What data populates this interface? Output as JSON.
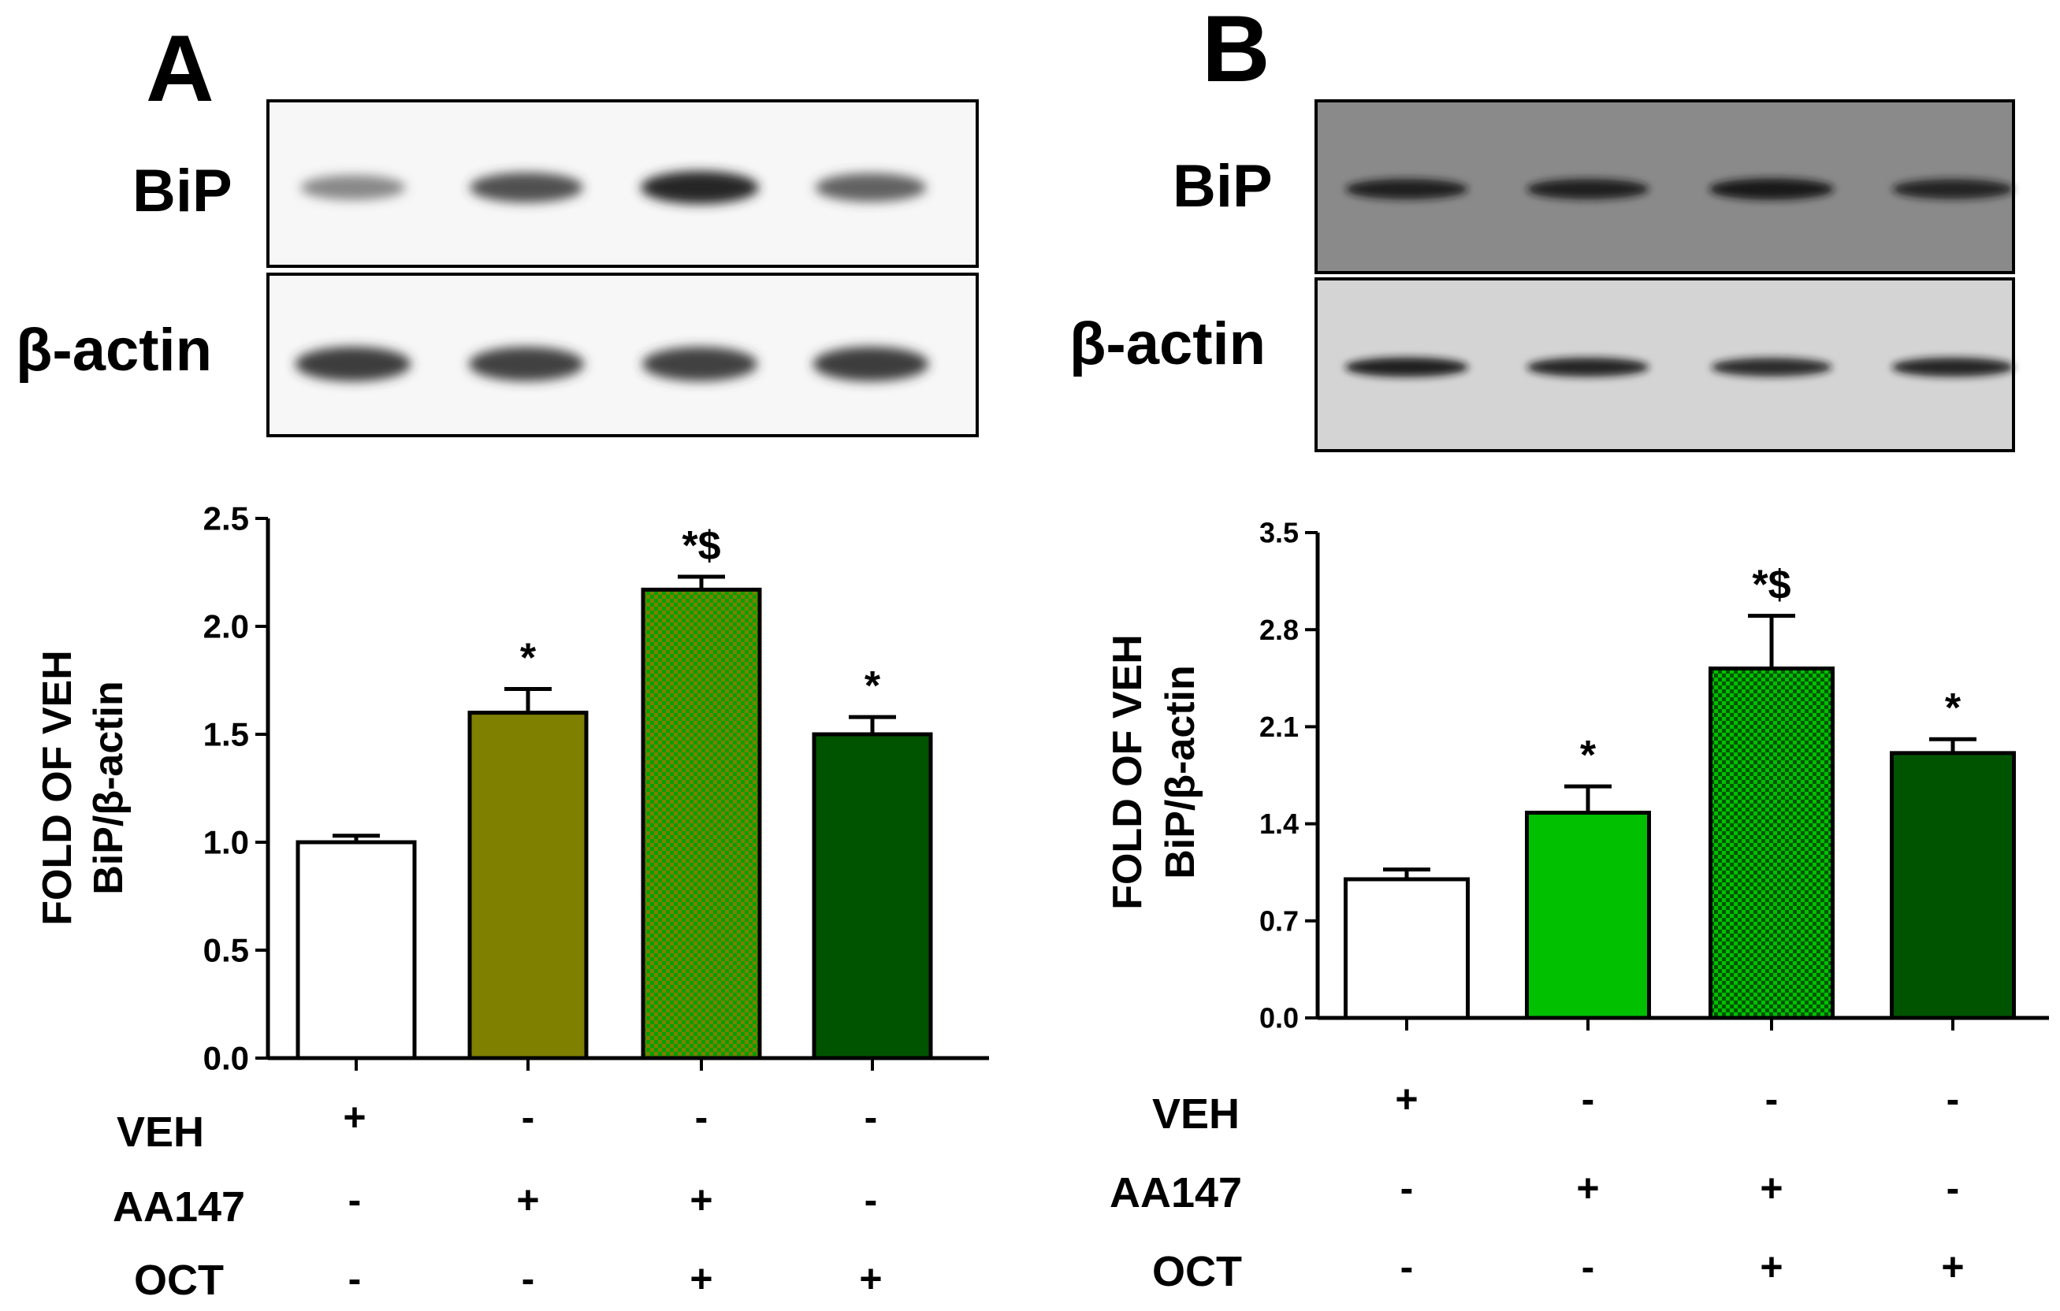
{
  "panels": [
    {
      "letter": "A",
      "blot_labels": [
        "BiP",
        "β-actin"
      ],
      "blot_style": "white-background",
      "bip_band_intensity": [
        0.45,
        0.8,
        1.0,
        0.7
      ],
      "actin_band_intensity": [
        0.9,
        0.88,
        0.88,
        0.9
      ],
      "colors": [
        "#ffffff",
        "#7f7f00",
        "#7f7f00",
        "#005400"
      ],
      "patterns": [
        "solid",
        "solid",
        "checker",
        "solid"
      ],
      "treatments": [
        {
          "label": "VEH",
          "marks": [
            "+",
            "-",
            "-",
            "-"
          ]
        },
        {
          "label": "AA147",
          "marks": [
            "-",
            "+",
            "+",
            "-"
          ]
        },
        {
          "label": "OCT",
          "marks": [
            "-",
            "-",
            "+",
            "+"
          ]
        }
      ]
    },
    {
      "letter": "B",
      "blot_labels": [
        "BiP",
        "β-actin"
      ],
      "blot_style": "grey-background",
      "bip_band_intensity": [
        0.85,
        0.85,
        0.95,
        0.8
      ],
      "actin_band_intensity": [
        0.9,
        0.85,
        0.8,
        0.85
      ],
      "colors": [
        "#ffffff",
        "#00c000",
        "#00c000",
        "#005400"
      ],
      "patterns": [
        "solid",
        "solid",
        "checker",
        "solid"
      ],
      "treatments": [
        {
          "label": "VEH",
          "marks": [
            "+",
            "-",
            "-",
            "-"
          ]
        },
        {
          "label": "AA147",
          "marks": [
            "-",
            "+",
            "+",
            "-"
          ]
        },
        {
          "label": "OCT",
          "marks": [
            "-",
            "-",
            "+",
            "+"
          ]
        }
      ]
    }
  ],
  "chart_data": [
    {
      "type": "bar",
      "categories": [
        "VEH",
        "AA147",
        "AA147+OCT",
        "OCT"
      ],
      "series": [
        {
          "values": [
            1.0,
            1.6,
            2.17,
            1.5
          ],
          "errors": [
            0.03,
            0.11,
            0.06,
            0.08
          ]
        }
      ],
      "annotations": [
        "",
        "*",
        "*$",
        "*"
      ],
      "ylabel_lines": [
        "FOLD OF VEH",
        "BiP/β-actin"
      ],
      "ylim": [
        0,
        2.5
      ],
      "yticks": [
        "0.0",
        "0.5",
        "1.0",
        "1.5",
        "2.0",
        "2.5"
      ],
      "ytick_values": [
        0,
        0.5,
        1.0,
        1.5,
        2.0,
        2.5
      ],
      "grid": false
    },
    {
      "type": "bar",
      "categories": [
        "VEH",
        "AA147",
        "AA147+OCT",
        "OCT"
      ],
      "series": [
        {
          "values": [
            1.0,
            1.48,
            2.52,
            1.91
          ],
          "errors": [
            0.07,
            0.19,
            0.38,
            0.1
          ]
        }
      ],
      "annotations": [
        "",
        "*",
        "*$",
        "*"
      ],
      "ylabel_lines": [
        "FOLD OF VEH",
        "BiP/β-actin"
      ],
      "ylim": [
        0,
        3.5
      ],
      "yticks": [
        "0.0",
        "0.7",
        "1.4",
        "2.1",
        "2.8",
        "3.5"
      ],
      "ytick_values": [
        0,
        0.7,
        1.4,
        2.1,
        2.8,
        3.5
      ],
      "grid": false
    }
  ]
}
